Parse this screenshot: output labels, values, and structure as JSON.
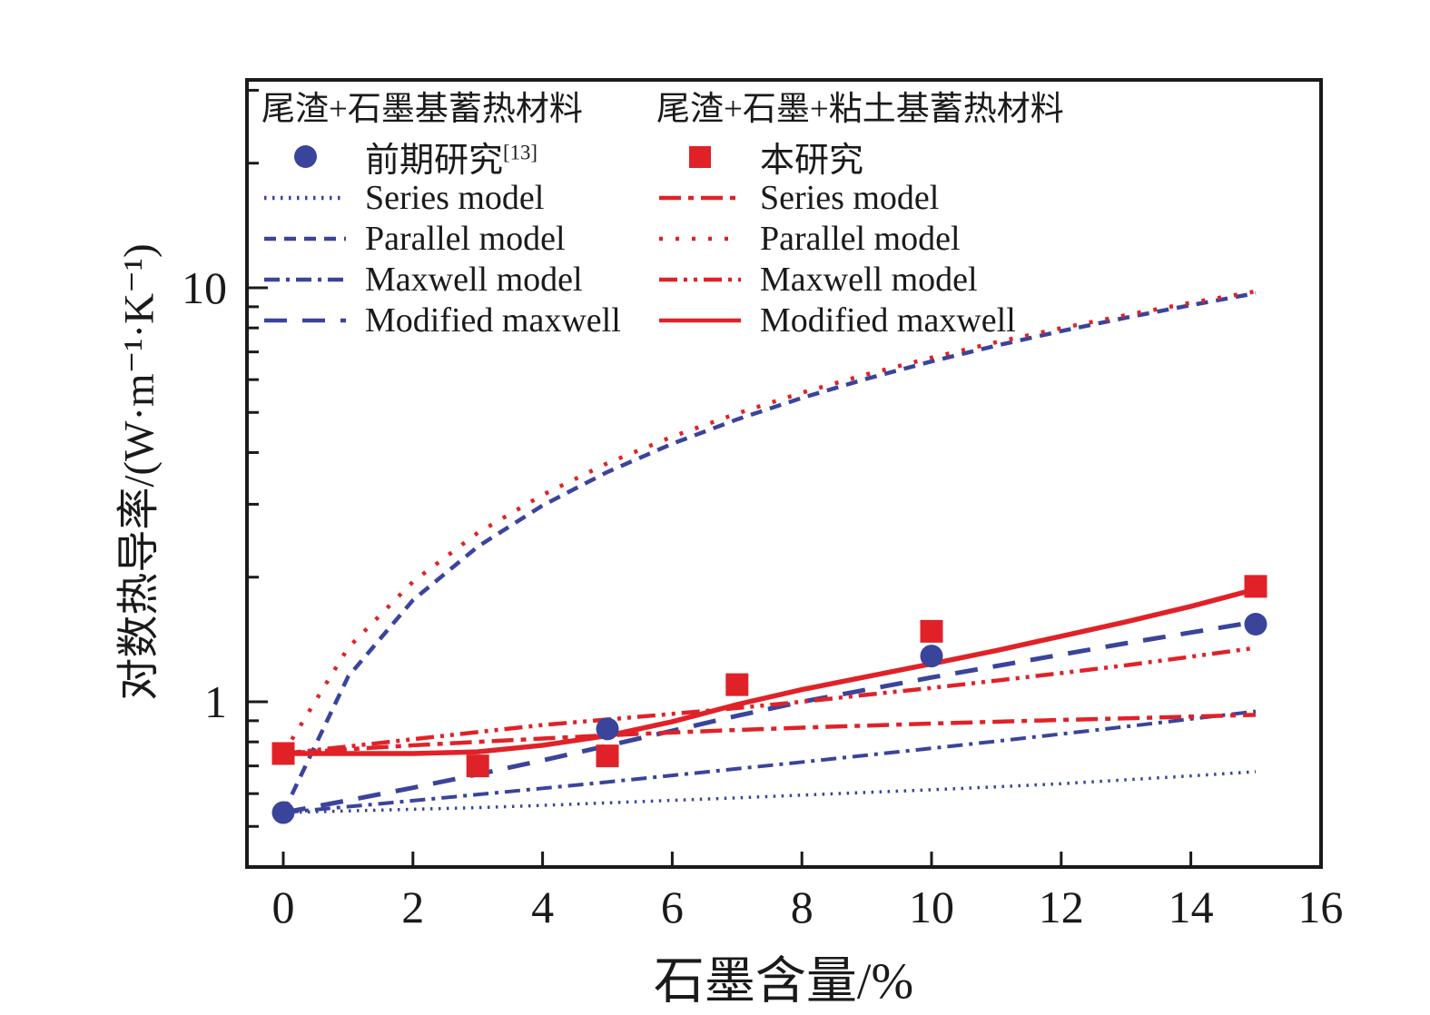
{
  "colors": {
    "blue": "#3a449b",
    "red": "#e02228",
    "axis": "#1a1a1a"
  },
  "legend": {
    "col1": {
      "header": "尾渣+石墨基蓄热材料",
      "items": [
        {
          "label": "前期研究",
          "sup": "[13]",
          "swatch": "circle",
          "color": "blue"
        },
        {
          "label": "Series model",
          "swatch": "dotted",
          "color": "blue"
        },
        {
          "label": "Parallel model",
          "swatch": "dashed",
          "color": "blue"
        },
        {
          "label": "Maxwell model",
          "swatch": "dashdot",
          "color": "blue"
        },
        {
          "label": "Modified maxwell",
          "swatch": "longdash",
          "color": "blue"
        }
      ]
    },
    "col2": {
      "header": "尾渣+石墨+粘土基蓄热材料",
      "items": [
        {
          "label": "本研究",
          "sup": "",
          "swatch": "square",
          "color": "red"
        },
        {
          "label": "Series model",
          "swatch": "dashdot-wide",
          "color": "red"
        },
        {
          "label": "Parallel model",
          "swatch": "dotted-sparse",
          "color": "red"
        },
        {
          "label": "Maxwell model",
          "swatch": "dashdotdot",
          "color": "red"
        },
        {
          "label": "Modified maxwell",
          "swatch": "solid",
          "color": "red"
        }
      ]
    }
  },
  "chart_data": {
    "type": "line",
    "xlabel": "石墨含量/%",
    "ylabel": "对数热导率/(W·m⁻¹·K⁻¹)",
    "x_axis": {
      "min": -0.56,
      "max": 16,
      "scale": "linear"
    },
    "y_axis": {
      "min": 0.4,
      "max": 31.8,
      "scale": "log"
    },
    "grid": false,
    "legend_position": "top-left-inside",
    "x_ticks": [
      0,
      2,
      4,
      6,
      8,
      10,
      12,
      14,
      16
    ],
    "y_major_ticks": [
      {
        "value": 1,
        "label": "1"
      },
      {
        "value": 10,
        "label": "10"
      }
    ],
    "y_minor_ticks": [
      0.5,
      0.6,
      0.7,
      0.8,
      0.9,
      2,
      3,
      4,
      5,
      6,
      7,
      8,
      9,
      20,
      30
    ],
    "x_values": [
      0,
      1,
      2,
      3,
      4,
      5,
      6,
      7,
      8,
      9,
      10,
      11,
      12,
      13,
      14,
      15
    ],
    "series": [
      {
        "group": "尾渣+石墨基蓄热材料",
        "name": "Series model",
        "color": "blue",
        "style": "dotted",
        "width": 3.5,
        "values": [
          0.54,
          0.545,
          0.55,
          0.555,
          0.562,
          0.57,
          0.578,
          0.586,
          0.595,
          0.604,
          0.613,
          0.623,
          0.634,
          0.648,
          0.662,
          0.678
        ]
      },
      {
        "group": "尾渣+石墨基蓄热材料",
        "name": "Parallel model",
        "color": "blue",
        "style": "dashed",
        "width": 4.5,
        "values": [
          0.54,
          1.15,
          1.76,
          2.37,
          2.98,
          3.59,
          4.2,
          4.81,
          5.42,
          6.03,
          6.64,
          7.25,
          7.86,
          8.47,
          9.08,
          9.7
        ]
      },
      {
        "group": "尾渣+石墨基蓄热材料",
        "name": "Maxwell model",
        "color": "blue",
        "style": "dashdot",
        "width": 4,
        "values": [
          0.54,
          0.558,
          0.577,
          0.597,
          0.618,
          0.64,
          0.664,
          0.689,
          0.715,
          0.743,
          0.772,
          0.803,
          0.836,
          0.871,
          0.909,
          0.948
        ]
      },
      {
        "group": "尾渣+石墨基蓄热材料",
        "name": "Modified maxwell",
        "color": "blue",
        "style": "longdash",
        "width": 5,
        "values": [
          0.54,
          0.578,
          0.62,
          0.668,
          0.722,
          0.783,
          0.851,
          0.925,
          1.0,
          1.07,
          1.145,
          1.22,
          1.3,
          1.385,
          1.47,
          1.56
        ]
      },
      {
        "group": "尾渣+石墨+粘土基蓄热材料",
        "name": "Series model",
        "color": "red",
        "style": "dashdot-wide",
        "width": 4.5,
        "values": [
          0.75,
          0.768,
          0.785,
          0.8,
          0.815,
          0.83,
          0.843,
          0.855,
          0.866,
          0.876,
          0.886,
          0.895,
          0.904,
          0.912,
          0.921,
          0.93
        ]
      },
      {
        "group": "尾渣+石墨+粘土基蓄热材料",
        "name": "Parallel model",
        "color": "red",
        "style": "dotted-sparse",
        "width": 4.5,
        "values": [
          0.75,
          1.35,
          1.95,
          2.56,
          3.16,
          3.77,
          4.37,
          4.97,
          5.58,
          6.18,
          6.78,
          7.39,
          7.99,
          8.59,
          9.2,
          9.8
        ]
      },
      {
        "group": "尾渣+石墨+粘土基蓄热材料",
        "name": "Maxwell model",
        "color": "red",
        "style": "dashdotdot",
        "width": 4.5,
        "values": [
          0.75,
          0.78,
          0.812,
          0.845,
          0.879,
          0.906,
          0.935,
          0.966,
          1.0,
          1.04,
          1.08,
          1.125,
          1.173,
          1.225,
          1.285,
          1.35
        ]
      },
      {
        "group": "尾渣+石墨+粘土基蓄热材料",
        "name": "Modified maxwell",
        "color": "red",
        "style": "solid",
        "width": 5.5,
        "values": [
          0.75,
          0.75,
          0.75,
          0.757,
          0.785,
          0.828,
          0.895,
          0.985,
          1.07,
          1.15,
          1.235,
          1.33,
          1.44,
          1.56,
          1.7,
          1.87
        ]
      }
    ],
    "scatter": [
      {
        "name": "前期研究[13]",
        "marker": "circle",
        "color": "blue",
        "size": 25,
        "points": [
          [
            0,
            0.54
          ],
          [
            5,
            0.86
          ],
          [
            10,
            1.29
          ],
          [
            15,
            1.54
          ]
        ]
      },
      {
        "name": "本研究",
        "marker": "square",
        "color": "red",
        "size": 25,
        "points": [
          [
            0,
            0.75
          ],
          [
            3,
            0.7
          ],
          [
            5,
            0.74
          ],
          [
            7,
            1.1
          ],
          [
            10,
            1.48
          ],
          [
            15,
            1.9
          ]
        ]
      }
    ]
  }
}
